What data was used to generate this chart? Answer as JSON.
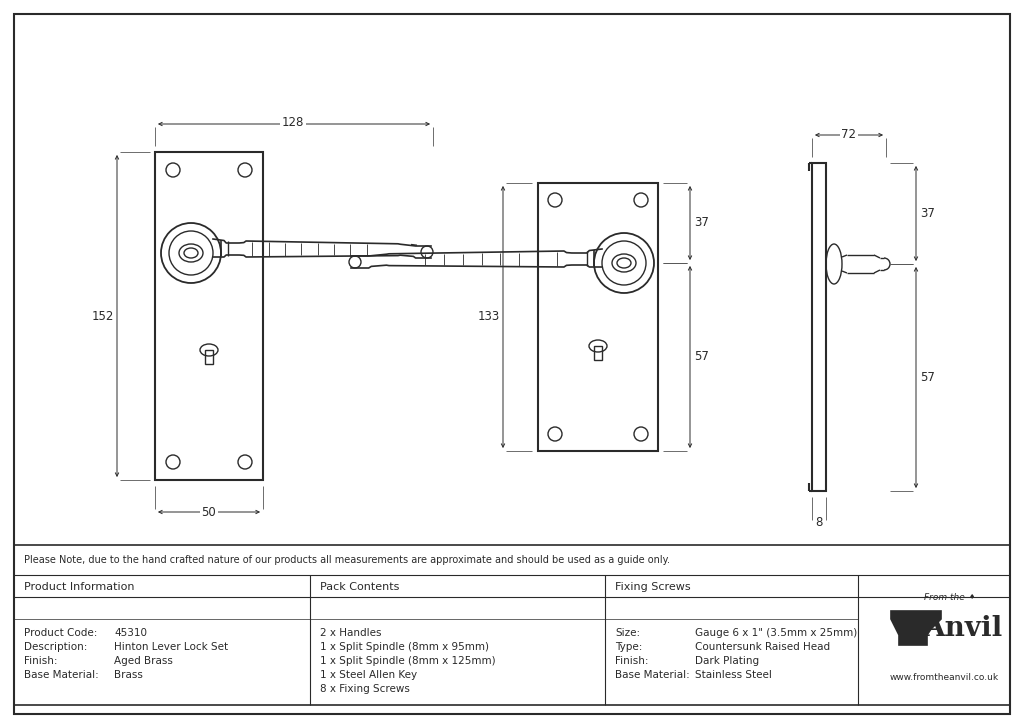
{
  "bg_color": "#ffffff",
  "line_color": "#2a2a2a",
  "note_text": "Please Note, due to the hand crafted nature of our products all measurements are approximate and should be used as a guide only.",
  "product_info": {
    "header": "Product Information",
    "rows": [
      [
        "Product Code:",
        "45310"
      ],
      [
        "Description:",
        "Hinton Lever Lock Set"
      ],
      [
        "Finish:",
        "Aged Brass"
      ],
      [
        "Base Material:",
        "Brass"
      ]
    ]
  },
  "pack_contents": {
    "header": "Pack Contents",
    "items": [
      "2 x Handles",
      "1 x Split Spindle (8mm x 95mm)",
      "1 x Split Spindle (8mm x 125mm)",
      "1 x Steel Allen Key",
      "8 x Fixing Screws"
    ]
  },
  "fixing_screws": {
    "header": "Fixing Screws",
    "rows": [
      [
        "Size:",
        "Gauge 6 x 1\" (3.5mm x 25mm)"
      ],
      [
        "Type:",
        "Countersunk Raised Head"
      ],
      [
        "Finish:",
        "Dark Plating"
      ],
      [
        "Base Material:",
        "Stainless Steel"
      ]
    ]
  }
}
